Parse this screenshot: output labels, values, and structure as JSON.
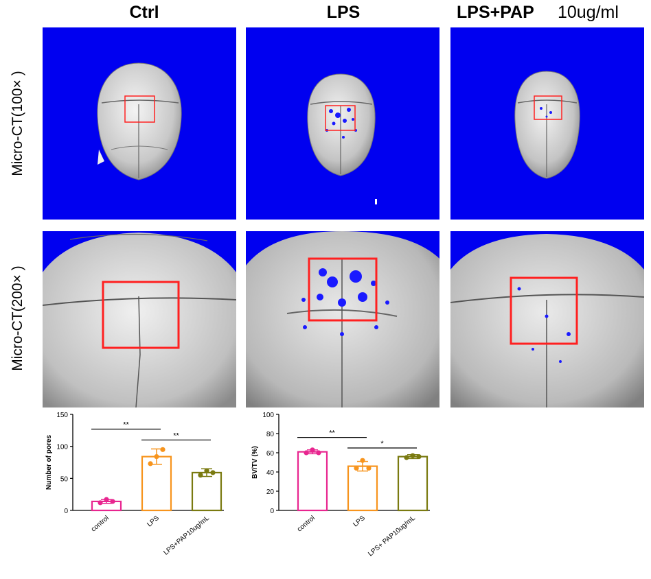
{
  "columns": [
    {
      "title": "Ctrl"
    },
    {
      "title": "LPS"
    },
    {
      "title": "LPS+PAP",
      "suffix": "10ug/ml"
    }
  ],
  "rows": [
    {
      "label": "Micro-CT(100× )"
    },
    {
      "label": "Micro-CT(200× )"
    }
  ],
  "colors": {
    "scan_background": "#0000f0",
    "roi_box": "#ff2020",
    "control": "#e8258f",
    "lps": "#f7941d",
    "lps_pap": "#7a7a10"
  },
  "chart_data": [
    {
      "type": "bar",
      "ylabel": "Number of pores",
      "categories": [
        "control",
        "LPS",
        "LPS+PAP10ug/mL"
      ],
      "values": [
        14,
        84,
        59
      ],
      "errors": [
        3,
        12,
        6
      ],
      "points": [
        [
          12,
          17,
          14
        ],
        [
          73,
          84,
          95
        ],
        [
          55,
          62,
          59
        ]
      ],
      "ylim": [
        0,
        150
      ],
      "yticks": [
        "0",
        "50",
        "100",
        "150"
      ],
      "significance": [
        {
          "from": 0,
          "to": 1,
          "label": "**",
          "y": 127
        },
        {
          "from": 1,
          "to": 2,
          "label": "**",
          "y": 110
        }
      ]
    },
    {
      "type": "bar",
      "ylabel": "BV/TV (%)",
      "categories": [
        "control",
        "LPS",
        "LPS+ PAP10ug/mL"
      ],
      "values": [
        61,
        46,
        56
      ],
      "errors": [
        2,
        5,
        2
      ],
      "points": [
        [
          60,
          63,
          60
        ],
        [
          44,
          52,
          44
        ],
        [
          55,
          57,
          56
        ]
      ],
      "ylim": [
        0,
        100
      ],
      "yticks": [
        "0",
        "20",
        "40",
        "60",
        "80",
        "100"
      ],
      "significance": [
        {
          "from": 0,
          "to": 1,
          "label": "**",
          "y": 76
        },
        {
          "from": 1,
          "to": 2,
          "label": "*",
          "y": 65
        }
      ]
    }
  ]
}
